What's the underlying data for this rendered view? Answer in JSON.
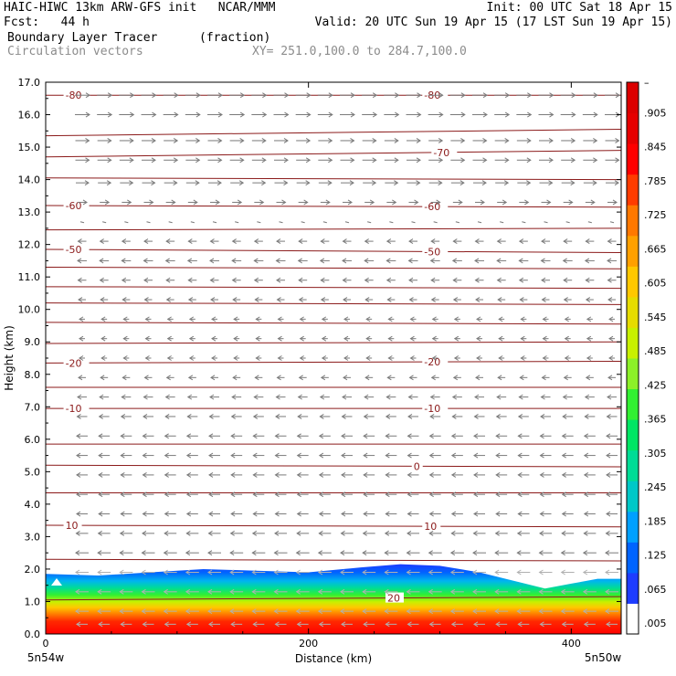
{
  "header": {
    "line1_left": "HAIC-HIWC 13km ARW-GFS init   NCAR/MMM",
    "line1_right": "Init: 00 UTC Sat 18 Apr 15",
    "line2_left": "Fcst:   44 h",
    "line2_right": "Valid: 20 UTC Sun 19 Apr 15 (17 LST Sun 19 Apr 15)",
    "field": "Boundary Layer Tracer",
    "units": "(fraction)",
    "vectors": "Circulation vectors",
    "xy": "XY= 251.0,100.0 to 284.7,100.0"
  },
  "chart_data": {
    "type": "heatmap",
    "title": "Boundary Layer Tracer",
    "xlabel": "Distance (km)",
    "ylabel": "Height (km)",
    "xlim": [
      0,
      438
    ],
    "ylim": [
      0,
      17
    ],
    "x_ticks": [
      0,
      200,
      400
    ],
    "y_ticks": [
      "0.0",
      "1.0",
      "2.0",
      "3.0",
      "4.0",
      "5.0",
      "6.0",
      "7.0",
      "8.0",
      "9.0",
      "10.0",
      "11.0",
      "12.0",
      "13.0",
      "14.0",
      "15.0",
      "16.0",
      "17.0"
    ],
    "x_end_labels": {
      "left": "5n54w",
      "right": "5n50w"
    },
    "colorbar": {
      "labels": [
        ".005",
        ".065",
        ".125",
        ".185",
        ".245",
        ".305",
        ".365",
        ".425",
        ".485",
        ".545",
        ".605",
        ".665",
        ".725",
        ".785",
        ".845",
        ".905",
        "–"
      ],
      "colors": [
        "#ffffff",
        "#1e3cff",
        "#0064ff",
        "#00a0ff",
        "#00c8c8",
        "#00dc96",
        "#00e664",
        "#32f032",
        "#8cf028",
        "#c8f000",
        "#e6dc00",
        "#ffc800",
        "#ffa000",
        "#ff7800",
        "#ff3c00",
        "#ff0000",
        "#e60000",
        "#dc0000"
      ]
    },
    "boundary_layer_top_km": {
      "x": [
        0,
        40,
        80,
        120,
        160,
        200,
        240,
        270,
        300,
        330,
        360,
        380,
        400,
        420,
        438
      ],
      "y": [
        1.85,
        1.8,
        1.9,
        2.0,
        1.95,
        1.9,
        2.05,
        2.15,
        2.1,
        1.9,
        1.6,
        1.4,
        1.55,
        1.7,
        1.7
      ]
    },
    "isotherms": [
      {
        "label": "-80",
        "y": [
          16.6,
          16.6
        ],
        "label_positions": [
          15,
          288
        ]
      },
      {
        "label": "",
        "y": [
          15.35,
          15.55
        ]
      },
      {
        "label": "-70",
        "y": [
          14.7,
          14.9
        ],
        "label_positions": [
          295
        ]
      },
      {
        "label": "",
        "y": [
          14.05,
          14.0
        ]
      },
      {
        "label": "-60",
        "y": [
          13.2,
          13.15
        ],
        "label_positions": [
          15,
          288
        ]
      },
      {
        "label": "",
        "y": [
          12.45,
          12.5
        ]
      },
      {
        "label": "-50",
        "y": [
          11.85,
          11.75
        ],
        "label_positions": [
          15,
          288
        ]
      },
      {
        "label": "",
        "y": [
          11.3,
          11.25
        ]
      },
      {
        "label": "",
        "y": [
          10.7,
          10.65
        ]
      },
      {
        "label": "",
        "y": [
          10.2,
          10.15
        ]
      },
      {
        "label": "",
        "y": [
          9.6,
          9.55
        ]
      },
      {
        "label": "",
        "y": [
          8.95,
          9.0
        ]
      },
      {
        "label": "-20",
        "y": [
          8.35,
          8.4
        ],
        "label_positions": [
          15,
          288
        ]
      },
      {
        "label": "",
        "y": [
          7.6,
          7.6
        ]
      },
      {
        "label": "-10",
        "y": [
          6.95,
          6.95
        ],
        "label_positions": [
          15,
          288
        ]
      },
      {
        "label": "",
        "y": [
          5.85,
          5.85
        ]
      },
      {
        "label": "0",
        "y": [
          5.2,
          5.15
        ],
        "label_positions": [
          280
        ]
      },
      {
        "label": "",
        "y": [
          4.35,
          4.35
        ]
      },
      {
        "label": "10",
        "y": [
          3.35,
          3.3
        ],
        "label_positions": [
          15,
          288
        ]
      },
      {
        "label": "",
        "y": [
          2.3,
          2.25
        ]
      },
      {
        "label": "20",
        "y": [
          1.05,
          1.15
        ],
        "label_positions": [
          260
        ]
      }
    ],
    "wind_vectors_grid": {
      "x_count": 25,
      "levels_km": [
        16.6,
        16.0,
        15.2,
        14.6,
        13.9,
        13.3,
        12.7,
        12.1,
        11.5,
        10.9,
        10.3,
        9.7,
        9.1,
        8.5,
        7.9,
        7.3,
        6.7,
        6.1,
        5.5,
        4.9,
        4.3,
        3.7,
        3.1,
        2.5,
        1.9,
        1.3,
        0.7,
        0.3
      ],
      "u_direction_by_level": [
        1,
        1,
        1,
        1,
        1,
        1,
        0,
        -1,
        -1,
        -1,
        -1,
        -1,
        -1,
        -1,
        -1,
        -1,
        -1,
        -1,
        -1,
        -1,
        -1,
        -1,
        -1,
        -1,
        -1,
        -1,
        -1,
        -1
      ],
      "length_by_level": [
        16,
        16,
        15,
        15,
        14,
        10,
        6,
        9,
        10,
        9,
        8,
        6,
        6,
        6,
        8,
        10,
        11,
        12,
        12,
        12,
        12,
        12,
        13,
        14,
        14,
        14,
        14,
        12
      ]
    }
  }
}
